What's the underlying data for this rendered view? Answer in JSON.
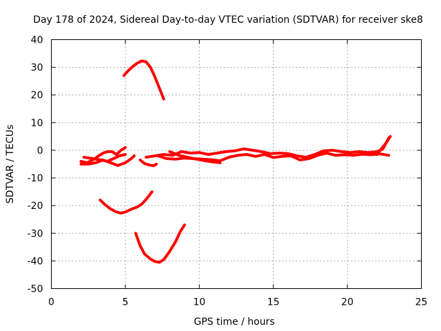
{
  "chart_data": {
    "type": "line",
    "title": "Day 178 of 2024, Sidereal Day-to-day VTEC variation (SDTVAR) for receiver ske8",
    "xlabel": "GPS time / hours",
    "ylabel": "SDTVAR / TECUs",
    "xlim": [
      0,
      25
    ],
    "ylim": [
      -50,
      40
    ],
    "xticks": [
      0,
      5,
      10,
      15,
      20,
      25
    ],
    "yticks": [
      -50,
      -40,
      -30,
      -20,
      -10,
      0,
      10,
      20,
      30,
      40
    ],
    "grid": true,
    "series_color": "#ff0000",
    "series": [
      {
        "name": "arc-positive-peak",
        "points": [
          [
            4.9,
            27
          ],
          [
            5.2,
            28.8
          ],
          [
            5.5,
            30.3
          ],
          [
            5.8,
            31.5
          ],
          [
            6.1,
            32.3
          ],
          [
            6.4,
            32
          ],
          [
            6.7,
            30
          ],
          [
            7.0,
            26.5
          ],
          [
            7.3,
            22.5
          ],
          [
            7.6,
            18.5
          ]
        ]
      },
      {
        "name": "arc-negative-mid",
        "points": [
          [
            3.3,
            -18
          ],
          [
            3.6,
            -19.5
          ],
          [
            4.0,
            -21.2
          ],
          [
            4.4,
            -22.3
          ],
          [
            4.7,
            -22.7
          ],
          [
            5.0,
            -22.3
          ],
          [
            5.4,
            -21.3
          ],
          [
            5.8,
            -20.5
          ],
          [
            6.1,
            -19.5
          ],
          [
            6.4,
            -17.8
          ],
          [
            6.8,
            -15
          ]
        ]
      },
      {
        "name": "arc-negative-deep",
        "points": [
          [
            5.7,
            -30
          ],
          [
            6.0,
            -34.5
          ],
          [
            6.3,
            -37.5
          ],
          [
            6.7,
            -39.3
          ],
          [
            7.0,
            -40.2
          ],
          [
            7.3,
            -40.5
          ],
          [
            7.6,
            -39.5
          ],
          [
            8.0,
            -36.5
          ],
          [
            8.4,
            -33
          ],
          [
            8.7,
            -29.5
          ],
          [
            9.0,
            -27
          ]
        ]
      },
      {
        "name": "cluster-a",
        "points": [
          [
            2.0,
            -4
          ],
          [
            2.4,
            -4.5
          ],
          [
            2.8,
            -3.5
          ],
          [
            3.2,
            -2
          ],
          [
            3.5,
            -1
          ],
          [
            3.8,
            -0.5
          ],
          [
            4.1,
            -0.5
          ],
          [
            4.4,
            -1.5
          ],
          [
            4.7,
            0
          ],
          [
            5.0,
            1
          ]
        ]
      },
      {
        "name": "cluster-b",
        "points": [
          [
            2.0,
            -5
          ],
          [
            2.5,
            -5
          ],
          [
            3.0,
            -4.5
          ],
          [
            3.5,
            -3.5
          ],
          [
            4.0,
            -4.5
          ],
          [
            4.5,
            -5.5
          ],
          [
            5.0,
            -4.5
          ],
          [
            5.4,
            -3
          ],
          [
            5.6,
            -2
          ]
        ]
      },
      {
        "name": "cluster-c",
        "points": [
          [
            2.2,
            -2.5
          ],
          [
            2.8,
            -3
          ],
          [
            3.4,
            -3.5
          ],
          [
            3.8,
            -4
          ],
          [
            4.2,
            -3
          ],
          [
            4.6,
            -2
          ],
          [
            5.0,
            -1.5
          ]
        ]
      },
      {
        "name": "cluster-d",
        "points": [
          [
            6.0,
            -3.5
          ],
          [
            6.3,
            -4.8
          ],
          [
            6.6,
            -5.3
          ],
          [
            6.9,
            -5.6
          ],
          [
            7.1,
            -5
          ]
        ]
      },
      {
        "name": "band-upper",
        "points": [
          [
            6.4,
            -2.5
          ],
          [
            7.0,
            -2
          ],
          [
            7.6,
            -1.5
          ],
          [
            8.2,
            -1.8
          ],
          [
            8.8,
            -0.5
          ],
          [
            9.4,
            -1
          ],
          [
            10.0,
            -0.8
          ],
          [
            10.6,
            -1.5
          ],
          [
            11.2,
            -1
          ],
          [
            11.8,
            -0.5
          ],
          [
            12.4,
            -0.2
          ],
          [
            13.0,
            0.5
          ],
          [
            13.6,
            0
          ],
          [
            14.2,
            -0.5
          ],
          [
            14.8,
            -1.2
          ],
          [
            15.4,
            -1
          ],
          [
            16.0,
            -1.2
          ],
          [
            16.6,
            -2
          ],
          [
            17.2,
            -2.5
          ],
          [
            17.8,
            -1.5
          ],
          [
            18.4,
            -0.2
          ],
          [
            19.0,
            0
          ],
          [
            19.6,
            -0.5
          ],
          [
            20.2,
            -0.8
          ],
          [
            20.8,
            -0.5
          ],
          [
            21.4,
            -0.8
          ],
          [
            22.0,
            -0.5
          ],
          [
            22.4,
            0.5
          ],
          [
            22.8,
            4.5
          ]
        ]
      },
      {
        "name": "band-lower",
        "points": [
          [
            7.2,
            -2
          ],
          [
            7.8,
            -3
          ],
          [
            8.4,
            -3.2
          ],
          [
            9.0,
            -2.8
          ],
          [
            9.6,
            -3
          ],
          [
            10.2,
            -3.2
          ],
          [
            10.8,
            -3.4
          ],
          [
            11.4,
            -3.8
          ],
          [
            12.0,
            -2.5
          ],
          [
            12.6,
            -1.8
          ],
          [
            13.2,
            -1.5
          ],
          [
            13.8,
            -2.2
          ],
          [
            14.4,
            -1.5
          ],
          [
            15.0,
            -2.6
          ],
          [
            15.6,
            -2.2
          ],
          [
            16.2,
            -2
          ],
          [
            16.8,
            -3.5
          ],
          [
            17.4,
            -3
          ],
          [
            18.0,
            -1.8
          ],
          [
            18.6,
            -1
          ],
          [
            19.2,
            -1.8
          ],
          [
            19.8,
            -1.6
          ],
          [
            20.4,
            -1.8
          ],
          [
            21.0,
            -1.4
          ],
          [
            21.6,
            -1.6
          ],
          [
            22.2,
            -1.3
          ],
          [
            22.8,
            -1.8
          ]
        ]
      },
      {
        "name": "band-diagonal",
        "points": [
          [
            8.0,
            -0.5
          ],
          [
            8.6,
            -1.8
          ],
          [
            9.2,
            -2.5
          ],
          [
            9.8,
            -3.2
          ],
          [
            10.4,
            -3.8
          ],
          [
            10.9,
            -4.2
          ],
          [
            11.4,
            -4.5
          ]
        ]
      },
      {
        "name": "right-edge",
        "points": [
          [
            22.0,
            -1.5
          ],
          [
            22.3,
            0.5
          ],
          [
            22.6,
            2.5
          ],
          [
            22.9,
            5
          ]
        ]
      }
    ]
  }
}
